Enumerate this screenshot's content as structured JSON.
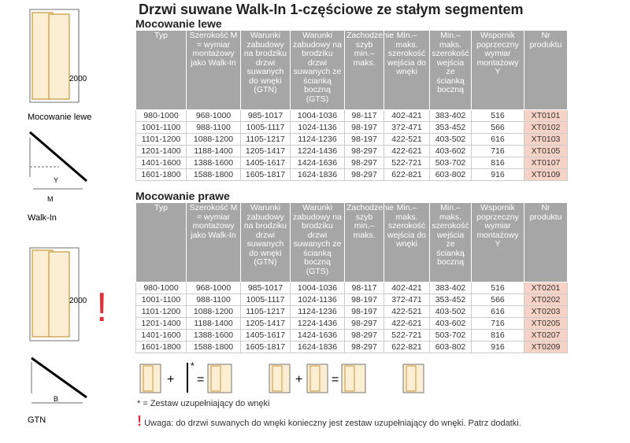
{
  "title": "Drzwi suwane Walk-In 1-częściowe ze stałym segmentem",
  "sections": [
    {
      "title": "Mocowanie lewe",
      "headers": [
        "Typ",
        "Szerokość M = wymiar montażowy jako Walk-In",
        "Warunki zabudowy na brodziku drzwi suwanych do wnęki (GTN)",
        "Warunki zabudowy na brodziku drzwi suwanych ze ścianką boczną (GTS)",
        "Zachodzenie szyb min.– maks.",
        "Min.– maks. szerokość wejścia do wnęki",
        "Min.– maks. szerokość wejścia ze ścianką boczną",
        "Wspornik poprzeczny wymiar montażowy Y",
        "Nr produktu"
      ],
      "rows": [
        [
          "980-1000",
          "968-1000",
          "985-1017",
          "1004-1036",
          "98-117",
          "402-421",
          "383-402",
          "516",
          "XT0101"
        ],
        [
          "1001-1100",
          "988-1100",
          "1005-1117",
          "1024-1136",
          "98-197",
          "372-471",
          "353-452",
          "566",
          "XT0102"
        ],
        [
          "1101-1200",
          "1088-1200",
          "1105-1217",
          "1124-1236",
          "98-197",
          "422-521",
          "403-502",
          "616",
          "XT0103"
        ],
        [
          "1201-1400",
          "1188-1400",
          "1205-1417",
          "1224-1436",
          "98-297",
          "422-621",
          "403-602",
          "716",
          "XT0105"
        ],
        [
          "1401-1600",
          "1388-1600",
          "1405-1617",
          "1424-1636",
          "98-297",
          "522-721",
          "503-702",
          "816",
          "XT0107"
        ],
        [
          "1601-1800",
          "1588-1800",
          "1605-1817",
          "1624-1836",
          "98-297",
          "622-821",
          "603-802",
          "916",
          "XT0109"
        ]
      ]
    },
    {
      "title": "Mocowanie prawe",
      "headers": [
        "Typ",
        "Szerokość M = wymiar montażowy jako Walk-In",
        "Warunki zabudowy na brodziku drzwi suwanych do wnęki (GTN)",
        "Warunki zabudowy na brodziku drzwi suwanych ze ścianką boczną (GTS)",
        "Zachodzenie szyb min.– maks.",
        "Min.– maks. szerokość wejścia do wnęki",
        "Min.– maks. szerokość wejścia ze ścianką boczną",
        "Wspornik poprzeczny wymiar montażowy Y",
        "Nr produktu"
      ],
      "rows": [
        [
          "980-1000",
          "968-1000",
          "985-1017",
          "1004-1036",
          "98-117",
          "402-421",
          "383-402",
          "516",
          "XT0201"
        ],
        [
          "1001-1100",
          "988-1100",
          "1005-1117",
          "1024-1136",
          "98-197",
          "372-471",
          "353-452",
          "566",
          "XT0202"
        ],
        [
          "1101-1200",
          "1088-1200",
          "1105-1217",
          "1124-1236",
          "98-197",
          "422-521",
          "403-502",
          "616",
          "XT0203"
        ],
        [
          "1201-1400",
          "1188-1400",
          "1205-1417",
          "1224-1436",
          "98-297",
          "422-621",
          "403-602",
          "716",
          "XT0205"
        ],
        [
          "1401-1600",
          "1388-1600",
          "1405-1617",
          "1424-1636",
          "98-297",
          "522-721",
          "503-702",
          "816",
          "XT0207"
        ],
        [
          "1601-1800",
          "1588-1800",
          "1605-1817",
          "1624-1836",
          "98-297",
          "622-821",
          "603-802",
          "916",
          "XT0209"
        ]
      ]
    }
  ],
  "drawings": {
    "left_caption": "Mocowanie lewe",
    "left_height": "2000",
    "walkin_caption": "Walk-In",
    "walkin_m": "M",
    "walkin_y": "Y",
    "gtn_caption": "GTN",
    "gtn_height": "2000",
    "gtn_b": "B",
    "alert": "!"
  },
  "icons": {
    "plus1": "+",
    "star": "*",
    "eq1": "=",
    "plus2": "+",
    "eq2": "="
  },
  "footnote": "* = Zestaw uzupełniający do wnęki",
  "warning": {
    "mark": "!",
    "text": "Uwaga: do drzwi suwanych do wnęki konieczny jest zestaw uzupełniający do wnęki. Patrz dodatki."
  }
}
